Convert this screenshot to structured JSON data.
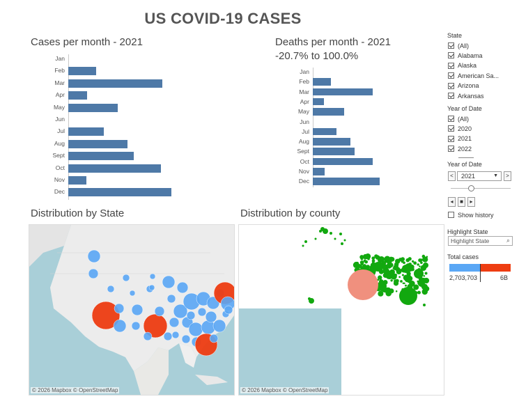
{
  "title": "US COVID-19 CASES",
  "cases_chart": {
    "title": "Cases per month - 2021",
    "chart_data": {
      "type": "bar",
      "orientation": "horizontal",
      "categories": [
        "Jan",
        "Feb",
        "Mar",
        "Apr",
        "May",
        "Jun",
        "Jul",
        "Aug",
        "Sept",
        "Oct",
        "Nov",
        "Dec"
      ],
      "values": [
        0,
        30,
        100,
        20,
        53,
        0,
        38,
        63,
        70,
        99,
        19,
        110
      ]
    }
  },
  "deaths_chart": {
    "title": "Deaths per month - 2021",
    "subtitle": "-20.7% to 100.0%",
    "chart_data": {
      "type": "bar",
      "orientation": "horizontal",
      "categories": [
        "Jan",
        "Feb",
        "Mar",
        "Apr",
        "May",
        "Jun",
        "Jul",
        "Aug",
        "Sept",
        "Oct",
        "Nov",
        "Dec"
      ],
      "values": [
        0,
        27,
        90,
        17,
        47,
        0,
        35,
        56,
        63,
        90,
        18,
        100
      ]
    }
  },
  "state_map": {
    "title": "Distribution by State",
    "credit": "© 2026 Mapbox © OpenStreetMap"
  },
  "county_map": {
    "title": "Distribution by county",
    "credit": "© 2026 Mapbox © OpenStreetMap"
  },
  "filters": {
    "state": {
      "title": "State",
      "items": [
        {
          "label": "(All)",
          "checked": true
        },
        {
          "label": "Alabama",
          "checked": true
        },
        {
          "label": "Alaska",
          "checked": true
        },
        {
          "label": "American Sa...",
          "checked": true
        },
        {
          "label": "Arizona",
          "checked": true
        },
        {
          "label": "Arkansas",
          "checked": true
        }
      ]
    },
    "year": {
      "title": "Year of Date",
      "items": [
        {
          "label": "(All)",
          "checked": true
        },
        {
          "label": "2020",
          "checked": true
        },
        {
          "label": "2021",
          "checked": true
        },
        {
          "label": "2022",
          "checked": true
        }
      ]
    },
    "year_select": {
      "title": "Year of Date",
      "value": "2021",
      "prev": "<",
      "next": ">"
    },
    "show_history": "Show history",
    "highlight": {
      "title": "Highlight State",
      "placeholder": "Highlight State"
    },
    "total_cases": {
      "title": "Total cases",
      "min_label": "2,703,703",
      "max_label": "6B"
    }
  },
  "colors": {
    "bar": "#4e79a7",
    "state_bubble_small": "#5aa7f5",
    "state_bubble_large": "#ee3d12",
    "county": "#12a80f",
    "county_large": "#f0907e",
    "water": "#a9cfd8"
  }
}
